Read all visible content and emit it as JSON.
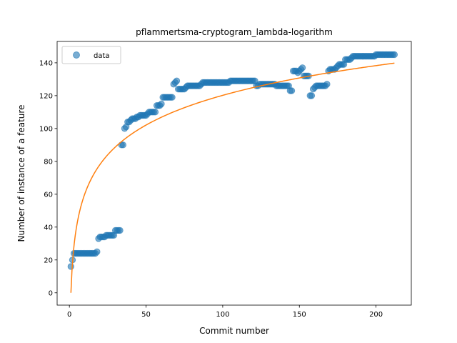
{
  "chart_data": {
    "type": "scatter",
    "title": "pflammertsma-cryptogram_lambda-logarithm",
    "xlabel": "Commit number",
    "ylabel": "Number of instance of a feature",
    "xlim": [
      -8,
      223
    ],
    "ylim": [
      -7.5,
      153
    ],
    "xticks": [
      0,
      50,
      100,
      150,
      200
    ],
    "yticks": [
      0,
      20,
      40,
      60,
      80,
      100,
      120,
      140
    ],
    "grid": false,
    "legend": {
      "placement": "top-left",
      "entries": [
        "data"
      ]
    },
    "colors": {
      "data": "#1f77b4",
      "fit": "#ff7f0e"
    },
    "series": [
      {
        "name": "data",
        "kind": "scatter",
        "x": [
          1,
          2,
          3,
          4,
          5,
          6,
          7,
          8,
          9,
          10,
          11,
          12,
          13,
          14,
          15,
          16,
          17,
          18,
          19,
          20,
          21,
          22,
          23,
          24,
          25,
          26,
          27,
          28,
          29,
          30,
          31,
          32,
          33,
          34,
          35,
          36,
          37,
          38,
          39,
          40,
          41,
          42,
          43,
          44,
          45,
          46,
          47,
          48,
          49,
          50,
          51,
          52,
          53,
          54,
          55,
          56,
          57,
          58,
          59,
          60,
          61,
          62,
          63,
          64,
          65,
          66,
          67,
          68,
          69,
          70,
          71,
          72,
          73,
          74,
          75,
          76,
          77,
          78,
          79,
          80,
          81,
          82,
          83,
          84,
          85,
          86,
          87,
          88,
          89,
          90,
          91,
          92,
          93,
          94,
          95,
          96,
          97,
          98,
          99,
          100,
          101,
          102,
          103,
          104,
          105,
          106,
          107,
          108,
          109,
          110,
          111,
          112,
          113,
          114,
          115,
          116,
          117,
          118,
          119,
          120,
          121,
          122,
          123,
          124,
          125,
          126,
          127,
          128,
          129,
          130,
          131,
          132,
          133,
          134,
          135,
          136,
          137,
          138,
          139,
          140,
          141,
          142,
          143,
          144,
          145,
          146,
          147,
          148,
          149,
          150,
          151,
          152,
          153,
          154,
          155,
          156,
          157,
          158,
          159,
          160,
          161,
          162,
          163,
          164,
          165,
          166,
          167,
          168,
          169,
          170,
          171,
          172,
          173,
          174,
          175,
          176,
          177,
          178,
          179,
          180,
          181,
          182,
          183,
          184,
          185,
          186,
          187,
          188,
          189,
          190,
          191,
          192,
          193,
          194,
          195,
          196,
          197,
          198,
          199,
          200,
          201,
          202,
          203,
          204,
          205,
          206,
          207,
          208,
          209,
          210,
          211,
          212
        ],
        "y": [
          16,
          20,
          24,
          24,
          24,
          24,
          24,
          24,
          24,
          24,
          24,
          24,
          24,
          24,
          24,
          24,
          24,
          25,
          33,
          34,
          34,
          34,
          34,
          35,
          35,
          35,
          35,
          35,
          35,
          38,
          38,
          38,
          38,
          90,
          90,
          100,
          101,
          104,
          104,
          105,
          106,
          106,
          106,
          107,
          107,
          108,
          108,
          108,
          108,
          108,
          109,
          110,
          110,
          110,
          110,
          110,
          114,
          114,
          114,
          115,
          119,
          119,
          119,
          119,
          119,
          119,
          119,
          127,
          128,
          129,
          124,
          124,
          124,
          124,
          124,
          125,
          126,
          126,
          126,
          126,
          126,
          126,
          126,
          126,
          126,
          127,
          128,
          128,
          128,
          128,
          128,
          128,
          128,
          128,
          128,
          128,
          128,
          128,
          128,
          128,
          128,
          128,
          128,
          128,
          129,
          129,
          129,
          129,
          129,
          129,
          129,
          129,
          129,
          129,
          129,
          129,
          129,
          129,
          129,
          129,
          129,
          126,
          126,
          127,
          127,
          127,
          127,
          127,
          127,
          127,
          127,
          127,
          127,
          127,
          126,
          126,
          126,
          126,
          126,
          126,
          126,
          126,
          126,
          123,
          123,
          135,
          135,
          135,
          134,
          135,
          136,
          137,
          132,
          132,
          132,
          132,
          120,
          120,
          124,
          125,
          126,
          126,
          126,
          126,
          126,
          126,
          126,
          127,
          135,
          136,
          136,
          136,
          136,
          137,
          138,
          139,
          139,
          139,
          139,
          142,
          142,
          142,
          142,
          143,
          144,
          144,
          144,
          144,
          144,
          144,
          144,
          144,
          144,
          144,
          144,
          144,
          144,
          144,
          144,
          145,
          145,
          145,
          145,
          145,
          145,
          145,
          145,
          145,
          145,
          145,
          145,
          145
        ]
      },
      {
        "kind": "line",
        "formula": "y = a*ln(x)",
        "a": 26.1,
        "x_range": [
          1,
          212
        ]
      }
    ]
  }
}
